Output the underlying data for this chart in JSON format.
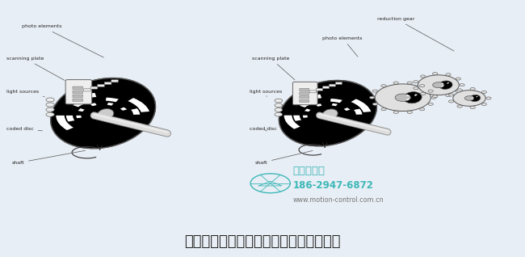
{
  "title": "从单圈绝对值编码器到多圈绝对值编码器",
  "title_fontsize": 13,
  "title_color": "#222222",
  "background_color": "#e8eef5",
  "watermark_company": "西安德伽拓",
  "watermark_phone": "186-2947-6872",
  "watermark_web": "www.motion-control.com.cn",
  "watermark_color": "#3db8b8",
  "fig_width": 6.5,
  "fig_height": 3.18,
  "dpi": 100
}
